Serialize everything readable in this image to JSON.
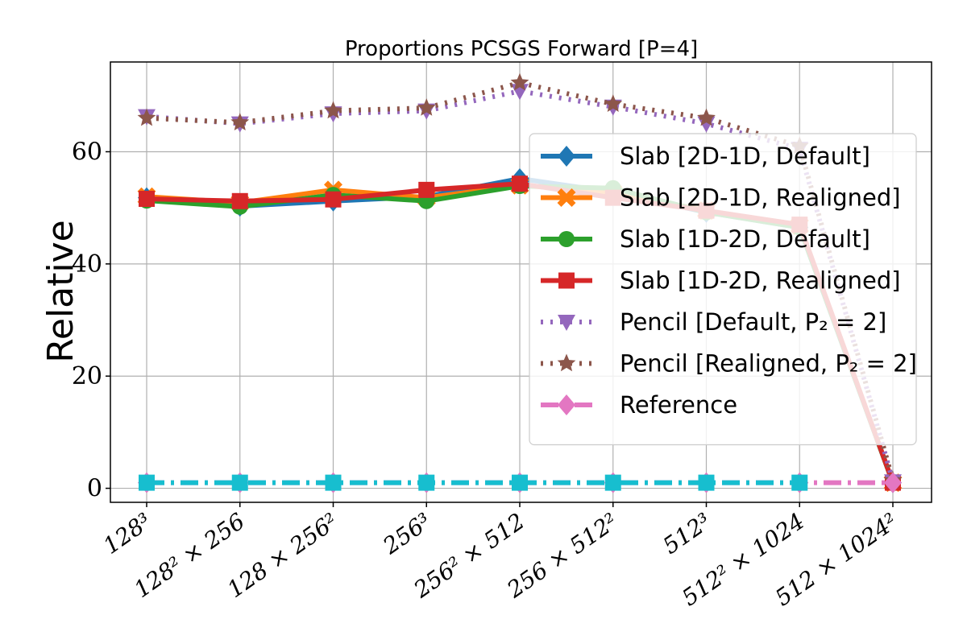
{
  "chart_data": {
    "type": "line",
    "title": "Proportions PCSGS Forward [P=4]",
    "xlabel": "",
    "ylabel": "Relative",
    "categories": [
      "128³",
      "128² × 256",
      "128 × 256²",
      "256³",
      "256² × 512",
      "256 × 512²",
      "512³",
      "512² × 1024",
      "512 × 1024²"
    ],
    "ylim": [
      -2.5,
      76
    ],
    "yticks": [
      0,
      20,
      40,
      60
    ],
    "grid": true,
    "legend_position": "center-right",
    "series": [
      {
        "name": "Slab [2D-1D, Default]",
        "color": "#1f77b4",
        "linestyle": "solid",
        "marker": "diamond",
        "values": [
          51.8,
          50.3,
          51.2,
          52.0,
          55.2,
          52.8,
          49.2,
          46.5,
          1.0
        ]
      },
      {
        "name": "Slab [2D-1D, Realigned]",
        "color": "#ff7f0e",
        "linestyle": "solid",
        "marker": "x",
        "values": [
          52.0,
          50.9,
          53.2,
          51.8,
          54.0,
          52.8,
          49.5,
          46.8,
          1.0
        ]
      },
      {
        "name": "Slab [1D-2D, Default]",
        "color": "#2ca02c",
        "linestyle": "solid",
        "marker": "circle",
        "values": [
          51.3,
          50.2,
          52.3,
          51.2,
          53.9,
          53.5,
          49.2,
          46.5,
          1.0
        ]
      },
      {
        "name": "Slab [1D-2D, Realigned]",
        "color": "#d62728",
        "linestyle": "solid",
        "marker": "square",
        "values": [
          51.6,
          51.2,
          51.5,
          53.2,
          54.3,
          51.8,
          49.5,
          47.0,
          1.0
        ]
      },
      {
        "name": "Pencil [Default, P₂ = 2]",
        "color": "#9467bd",
        "linestyle": "dotted",
        "marker": "triangle-down",
        "values": [
          66.3,
          65.0,
          66.8,
          67.3,
          70.8,
          68.0,
          65.0,
          60.5,
          1.2
        ]
      },
      {
        "name": "Pencil [Realigned, P₂ = 2]",
        "color": "#8c564b",
        "linestyle": "dotted",
        "marker": "star",
        "values": [
          66.0,
          65.2,
          67.3,
          67.8,
          72.3,
          68.5,
          66.0,
          61.0,
          1.4
        ]
      },
      {
        "name": "Reference",
        "color": "#e377c2",
        "linestyle": "dashdot",
        "marker": "diamond",
        "values": [
          1.0,
          1.0,
          1.0,
          1.0,
          1.0,
          1.0,
          1.0,
          1.0,
          1.0
        ]
      },
      {
        "name": "",
        "color": "#17becf",
        "linestyle": "dashdot",
        "marker": "square",
        "values": [
          1.0,
          1.0,
          1.0,
          1.0,
          1.0,
          1.0,
          1.0,
          1.0,
          null
        ]
      }
    ]
  }
}
